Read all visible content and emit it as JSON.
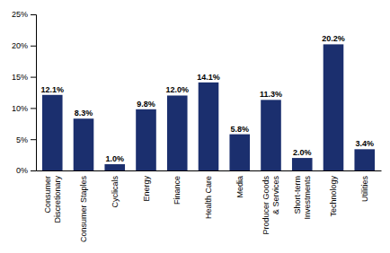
{
  "chart_data": {
    "type": "bar",
    "categories": [
      "Consumer\nDiscretionary",
      "Consumer Staples",
      "Cyclicals",
      "Energy",
      "Finance",
      "Health Care",
      "Media",
      "Producer Goods\n& Services",
      "Short-term\nInvestments",
      "Technology",
      "Utilities"
    ],
    "values": [
      12.1,
      8.3,
      1.0,
      9.8,
      12.0,
      14.1,
      5.8,
      11.3,
      2.0,
      20.2,
      3.4
    ],
    "value_labels": [
      "12.1%",
      "8.3%",
      "1.0%",
      "9.8%",
      "12.0%",
      "14.1%",
      "5.8%",
      "11.3%",
      "2.0%",
      "20.2%",
      "3.4%"
    ],
    "data_labels": true,
    "color": "#1b2f6e",
    "ylim": [
      0,
      25
    ],
    "yticks": [
      {
        "value": 0,
        "label": "0%"
      },
      {
        "value": 5,
        "label": "5%"
      },
      {
        "value": 10,
        "label": "10%"
      },
      {
        "value": 15,
        "label": "15%"
      },
      {
        "value": 20,
        "label": "20%"
      },
      {
        "value": 25,
        "label": "25%"
      }
    ],
    "grid": false
  }
}
